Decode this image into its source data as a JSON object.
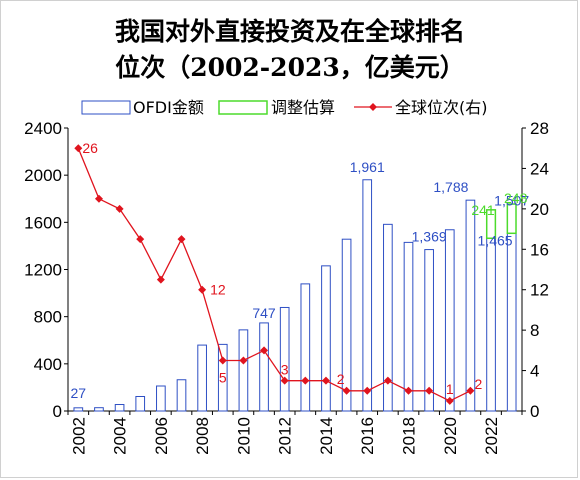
{
  "chart_data": {
    "type": "bar",
    "title_line1": "我国对外直接投资及在全球排名",
    "title_line2": "位次（2002-2023，亿美元）",
    "categories": [
      "2002",
      "2003",
      "2004",
      "2005",
      "2006",
      "2007",
      "2008",
      "2009",
      "2010",
      "2011",
      "2012",
      "2013",
      "2014",
      "2015",
      "2016",
      "2017",
      "2018",
      "2019",
      "2020",
      "2021",
      "2022",
      "2023"
    ],
    "x_tick_labels": [
      "2002",
      "2004",
      "2006",
      "2008",
      "2010",
      "2012",
      "2014",
      "2016",
      "2018",
      "2020",
      "2022"
    ],
    "left_axis": {
      "ylim": [
        0,
        2400
      ],
      "ticks": [
        "0",
        "400",
        "800",
        "1200",
        "1600",
        "2000",
        "2400"
      ]
    },
    "right_axis": {
      "ylim": [
        0,
        28
      ],
      "ticks": [
        "0",
        "4",
        "8",
        "12",
        "16",
        "20",
        "24",
        "28"
      ]
    },
    "series": [
      {
        "name": "OFDI金额",
        "kind": "bar",
        "axis": "left",
        "color": "#2E4FC4",
        "values": [
          27,
          28,
          55,
          123,
          212,
          265,
          559,
          565,
          688,
          747,
          878,
          1078,
          1231,
          1457,
          1961,
          1583,
          1430,
          1369,
          1537,
          1788,
          1465,
          1507
        ]
      },
      {
        "name": "调整估算",
        "kind": "floating-bar",
        "axis": "left",
        "color": "#4CDB2C",
        "ranges": [
          {
            "category": "2022",
            "low": 1465,
            "high": 1706
          },
          {
            "category": "2023",
            "low": 1507,
            "high": 1755
          }
        ]
      },
      {
        "name": "全球位次(右)",
        "kind": "line",
        "axis": "right",
        "color": "#E0141E",
        "values": [
          26,
          21,
          20,
          17,
          13,
          17,
          12,
          5,
          5,
          6,
          3,
          3,
          3,
          2,
          2,
          3,
          2,
          2,
          1,
          2,
          null,
          null
        ]
      }
    ],
    "bar_labels": [
      {
        "category": "2002",
        "text": "27"
      },
      {
        "category": "2011",
        "text": "747"
      },
      {
        "category": "2016",
        "text": "1,961"
      },
      {
        "category": "2019",
        "text": "1,369"
      },
      {
        "category": "2021",
        "text": "1,788"
      },
      {
        "category": "2022",
        "text": "1,465"
      },
      {
        "category": "2023",
        "text": "1,507"
      }
    ],
    "est_labels": [
      {
        "category": "2022",
        "text": "241"
      },
      {
        "category": "2023",
        "text": "248"
      }
    ],
    "rank_labels": [
      {
        "category": "2002",
        "text": "26"
      },
      {
        "category": "2008",
        "text": "12"
      },
      {
        "category": "2009",
        "text": "5"
      },
      {
        "category": "2012",
        "text": "3"
      },
      {
        "category": "2015",
        "text": "2"
      },
      {
        "category": "2020",
        "text": "1"
      },
      {
        "category": "2021",
        "text": "2"
      }
    ],
    "legend_placement": "top",
    "grid": false
  }
}
